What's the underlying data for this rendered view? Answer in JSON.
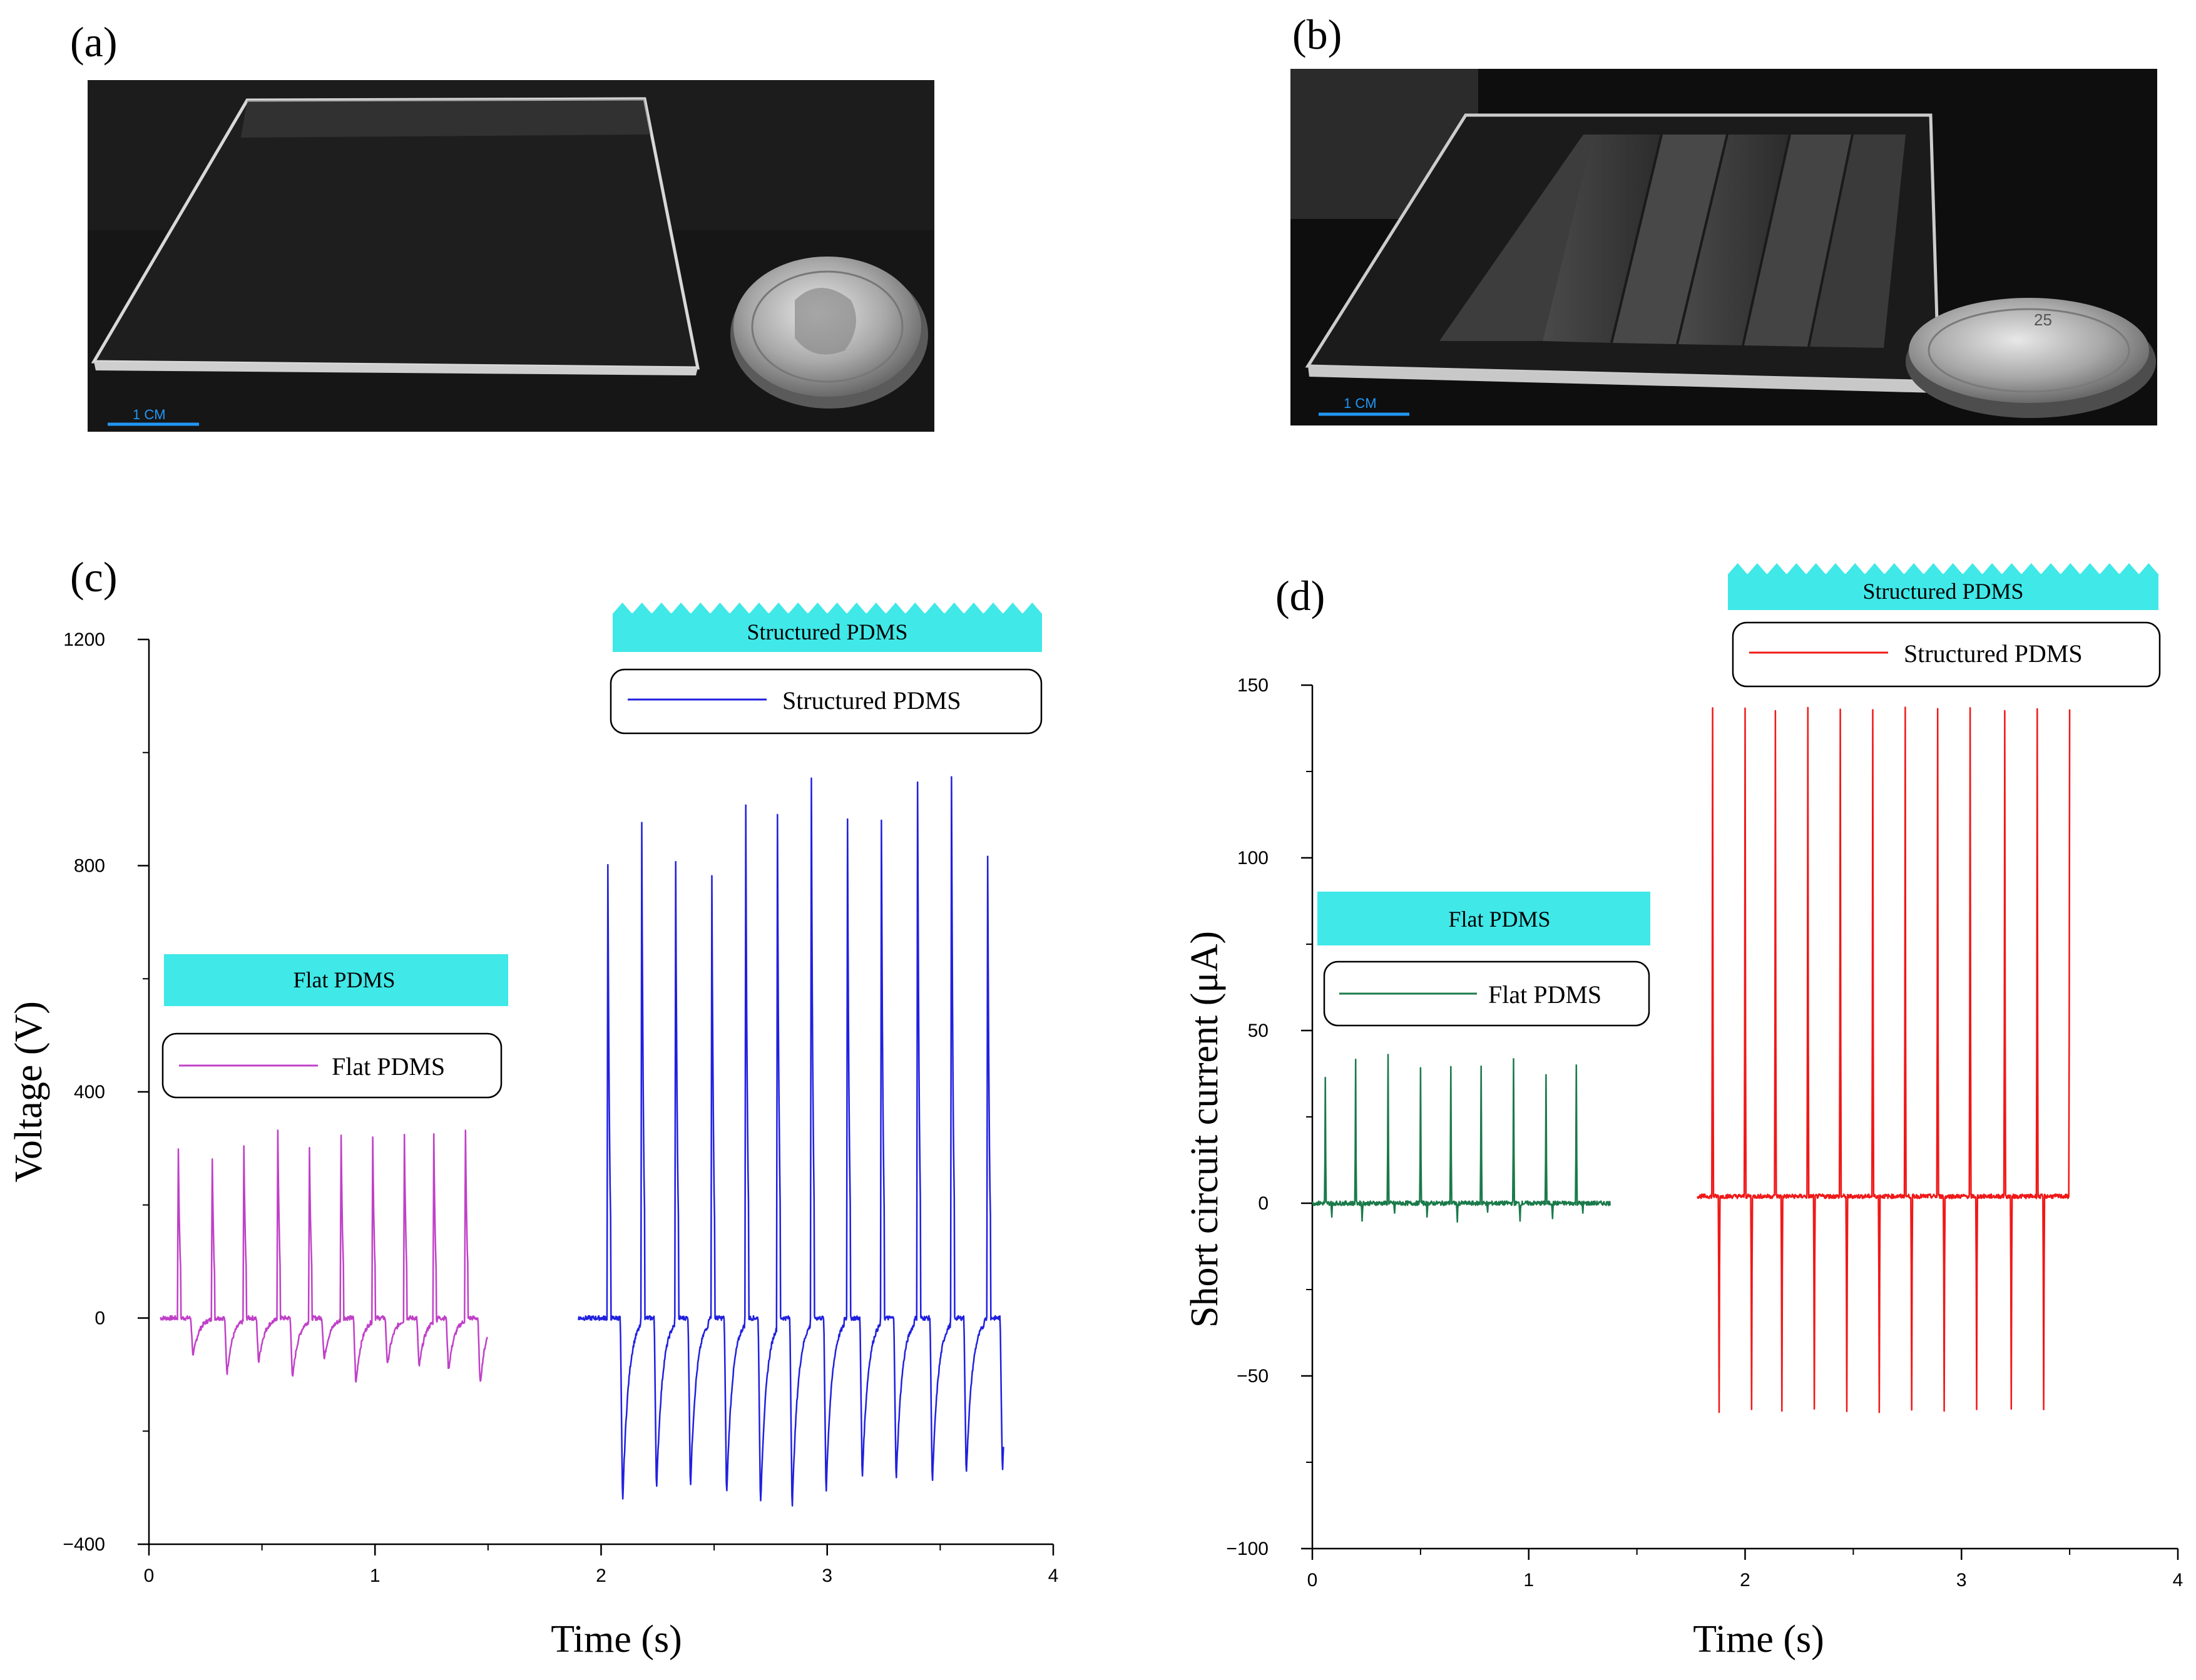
{
  "panels": {
    "a": {
      "label": "(a)",
      "scale_label": "1 CM"
    },
    "b": {
      "label": "(b)",
      "scale_label": "1 CM",
      "coin_text": "25"
    }
  },
  "chart_data": [
    {
      "panel": "(c)",
      "type": "line",
      "xlabel": "Time (s)",
      "ylabel": "Voltage (V)",
      "xlim": [
        0,
        4
      ],
      "ylim": [
        -400,
        1200
      ],
      "xticks": [
        0,
        1,
        2,
        3,
        4
      ],
      "yticks": [
        -400,
        0,
        400,
        800,
        1200
      ],
      "grid": false,
      "banners": [
        "Structured PDMS",
        "Flat PDMS"
      ],
      "series": [
        {
          "name": "Flat PDMS",
          "color": "#c040c8",
          "x_start": 0.05,
          "x_end": 1.5,
          "peak_times": [
            0.13,
            0.28,
            0.42,
            0.57,
            0.71,
            0.85,
            0.99,
            1.13,
            1.26,
            1.4
          ],
          "peak_values": [
            300,
            285,
            310,
            335,
            310,
            330,
            325,
            330,
            335,
            335
          ],
          "trough_values": [
            -70,
            -100,
            -80,
            -110,
            -75,
            -120,
            -85,
            -90,
            -95,
            -120
          ],
          "legend_placement": "left-middle"
        },
        {
          "name": "Structured PDMS",
          "color": "#2020e0",
          "x_start": 1.9,
          "x_end": 3.78,
          "peak_times": [
            2.03,
            2.18,
            2.33,
            2.49,
            2.64,
            2.78,
            2.93,
            3.09,
            3.24,
            3.4,
            3.55,
            3.71
          ],
          "peak_values": [
            800,
            880,
            805,
            785,
            905,
            910,
            955,
            885,
            880,
            950,
            955,
            815
          ],
          "trough_values": [
            -335,
            -310,
            -305,
            -320,
            -340,
            -345,
            -315,
            -290,
            -295,
            -300,
            -285,
            -275
          ],
          "legend_placement": "top-right"
        }
      ]
    },
    {
      "panel": "(d)",
      "type": "line",
      "xlabel": "Time (s)",
      "ylabel": "Short circuit current  (μA)",
      "xlim": [
        0,
        4
      ],
      "ylim": [
        -100,
        150
      ],
      "xticks": [
        0,
        1,
        2,
        3,
        4
      ],
      "yticks": [
        -100,
        -50,
        0,
        50,
        100,
        150
      ],
      "grid": false,
      "banners": [
        "Structured PDMS",
        "Flat PDMS"
      ],
      "series": [
        {
          "name": "Flat PDMS",
          "color": "#1a7a4a",
          "x_start": 0.0,
          "x_end": 1.38,
          "peak_times": [
            0.06,
            0.2,
            0.35,
            0.5,
            0.64,
            0.78,
            0.93,
            1.08,
            1.22
          ],
          "peak_values": [
            36,
            41,
            43,
            39,
            40,
            40,
            42,
            37,
            40
          ],
          "trough_values": [
            -4,
            -5,
            -3,
            -4,
            -6,
            -3,
            -5,
            -4,
            -3
          ],
          "legend_placement": "left-middle"
        },
        {
          "name": "Structured PDMS",
          "color": "#f01818",
          "x_start": 1.78,
          "x_end": 3.5,
          "peak_times": [
            1.85,
            2.0,
            2.14,
            2.29,
            2.44,
            2.59,
            2.74,
            2.89,
            3.04,
            3.2,
            3.35,
            3.5
          ],
          "peak_values": [
            141,
            141,
            141,
            141,
            141,
            141,
            141,
            141,
            141,
            141,
            141,
            141
          ],
          "trough_values": [
            -62,
            -62,
            -62,
            -62,
            -62,
            -62,
            -62,
            -62,
            -62,
            -62,
            -62,
            -62
          ],
          "legend_placement": "top-right"
        }
      ]
    }
  ]
}
